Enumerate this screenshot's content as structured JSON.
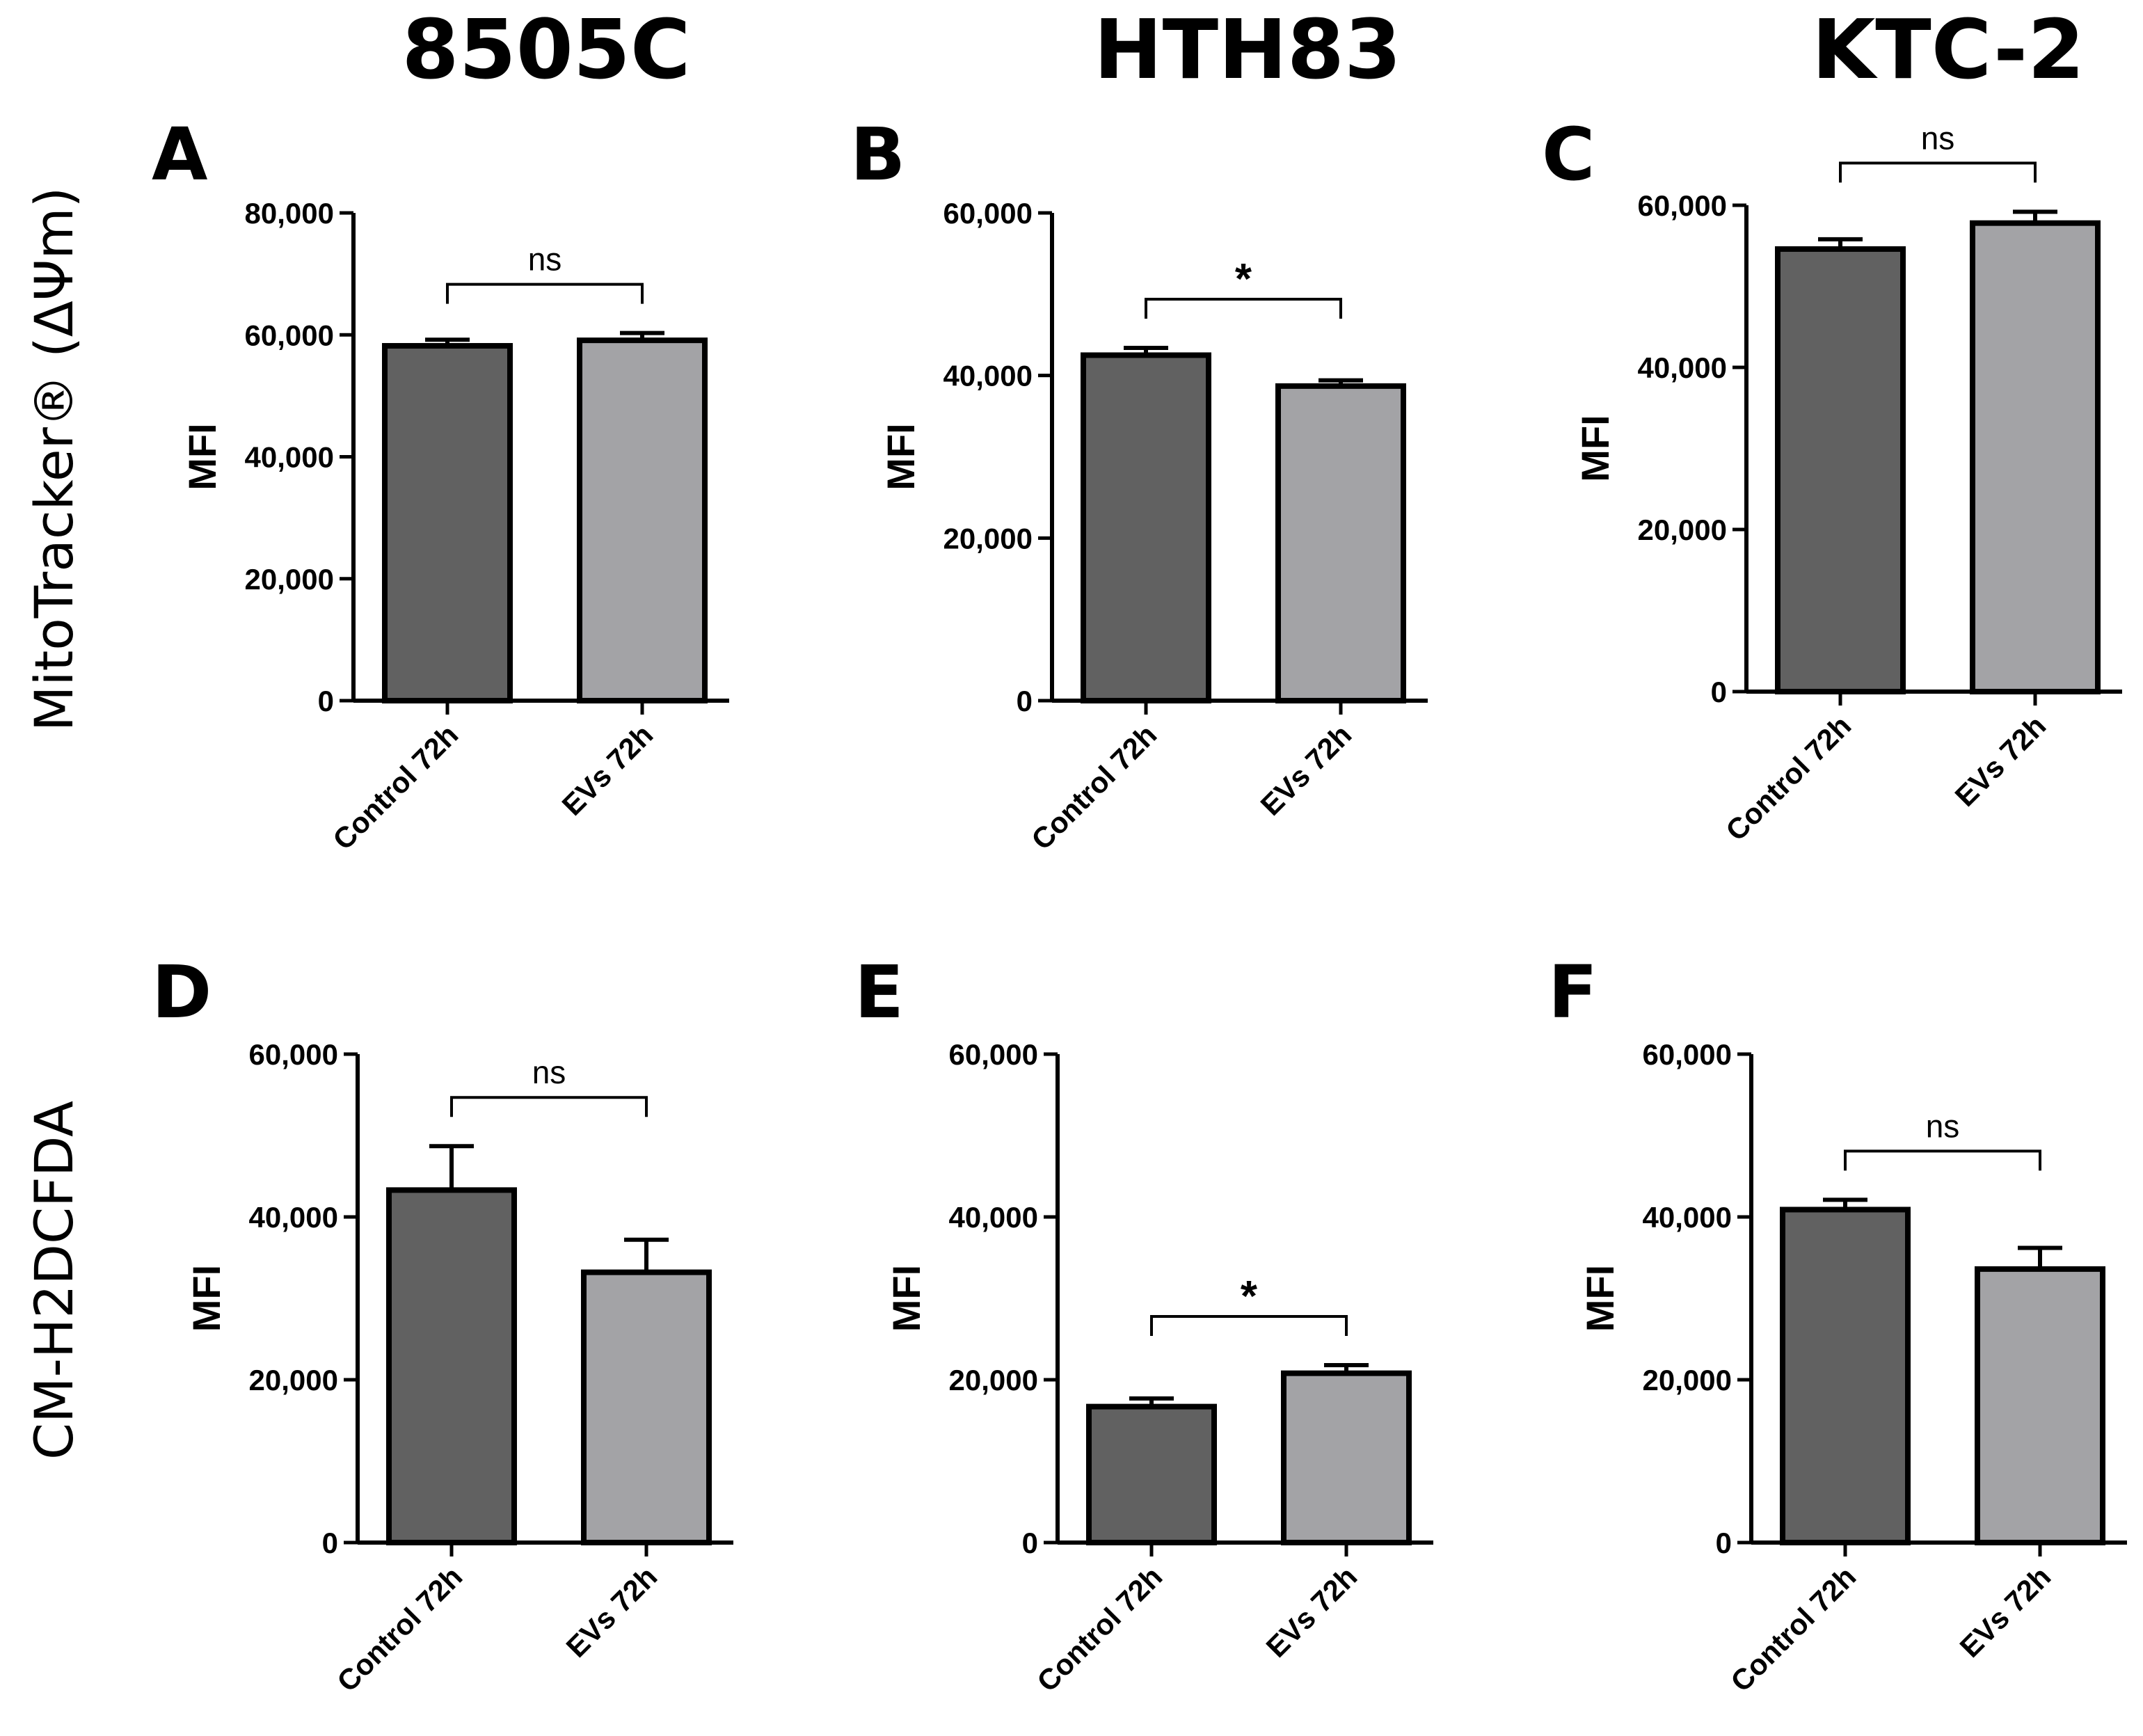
{
  "figure": {
    "column_titles": [
      "8505C",
      "HTH83",
      "KTC-2"
    ],
    "row_titles": [
      "MitoTracker® (ΔΨm)",
      "CM-H2DCFDA"
    ],
    "colors": {
      "control_bar": "#616161",
      "evs_bar": "#a3a3a6",
      "axis": "#000000"
    }
  },
  "chart_data": [
    {
      "panel": "A",
      "type": "bar",
      "title": "8505C",
      "ylabel": "MFI",
      "xlabel": "",
      "categories": [
        "Control 72h",
        "EVs 72h"
      ],
      "values": [
        58200,
        59100
      ],
      "errors": [
        1000,
        1200
      ],
      "ylim": [
        0,
        80000
      ],
      "yticks": [
        0,
        20000,
        40000,
        60000,
        80000
      ],
      "ytick_labels": [
        "0",
        "20,000",
        "40,000",
        "60,000",
        "80,000"
      ],
      "significance": "ns"
    },
    {
      "panel": "B",
      "type": "bar",
      "title": "HTH83",
      "ylabel": "MFI",
      "xlabel": "",
      "categories": [
        "Control 72h",
        "EVs 72h"
      ],
      "values": [
        42500,
        38700
      ],
      "errors": [
        900,
        700
      ],
      "ylim": [
        0,
        60000
      ],
      "yticks": [
        0,
        20000,
        40000,
        60000
      ],
      "ytick_labels": [
        "0",
        "20,000",
        "40,000",
        "60,000"
      ],
      "significance": "*"
    },
    {
      "panel": "C",
      "type": "bar",
      "title": "KTC-2",
      "ylabel": "MFI",
      "xlabel": "",
      "categories": [
        "Control 72h",
        "EVs 72h"
      ],
      "values": [
        54600,
        57800
      ],
      "errors": [
        1200,
        1400
      ],
      "ylim": [
        0,
        60000
      ],
      "yticks": [
        0,
        20000,
        40000,
        60000
      ],
      "ytick_labels": [
        "0",
        "20,000",
        "40,000",
        "60,000"
      ],
      "significance": "ns"
    },
    {
      "panel": "D",
      "type": "bar",
      "title": "8505C",
      "ylabel": "MFI",
      "xlabel": "",
      "categories": [
        "Control 72h",
        "EVs 72h"
      ],
      "values": [
        43300,
        33200
      ],
      "errors": [
        5400,
        4000
      ],
      "ylim": [
        0,
        60000
      ],
      "yticks": [
        0,
        20000,
        40000,
        60000
      ],
      "ytick_labels": [
        "0",
        "20,000",
        "40,000",
        "60,000"
      ],
      "significance": "ns"
    },
    {
      "panel": "E",
      "type": "bar",
      "title": "HTH83",
      "ylabel": "MFI",
      "xlabel": "",
      "categories": [
        "Control 72h",
        "EVs 72h"
      ],
      "values": [
        16700,
        20800
      ],
      "errors": [
        1000,
        1000
      ],
      "ylim": [
        0,
        60000
      ],
      "yticks": [
        0,
        20000,
        40000,
        60000
      ],
      "ytick_labels": [
        "0",
        "20,000",
        "40,000",
        "60,000"
      ],
      "significance": "*"
    },
    {
      "panel": "F",
      "type": "bar",
      "title": "KTC-2",
      "ylabel": "MFI",
      "xlabel": "",
      "categories": [
        "Control 72h",
        "EVs 72h"
      ],
      "values": [
        40900,
        33600
      ],
      "errors": [
        1200,
        2600
      ],
      "ylim": [
        0,
        60000
      ],
      "yticks": [
        0,
        20000,
        40000,
        60000
      ],
      "ytick_labels": [
        "0",
        "20,000",
        "40,000",
        "60,000"
      ],
      "significance": "ns"
    }
  ]
}
